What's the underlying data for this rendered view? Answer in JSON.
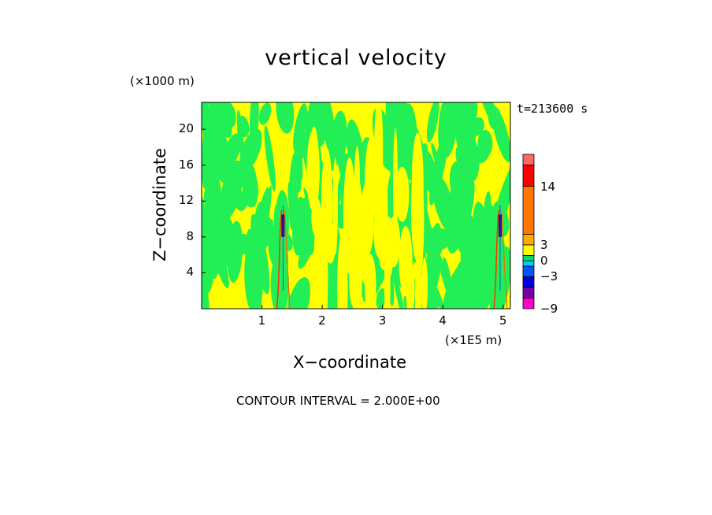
{
  "chart_data": {
    "type": "heatmap",
    "title": "vertical velocity",
    "xlabel": "X−coordinate",
    "ylabel": "Z−coordinate",
    "x_unit": "(×1E5 m)",
    "y_unit": "(×1000 m)",
    "time_label": "t=213600 s",
    "footer": "CONTOUR INTERVAL = 2.000E+00",
    "xlim": [
      0,
      5.12
    ],
    "ylim": [
      0,
      23
    ],
    "x_ticks": [
      "1",
      "2",
      "3",
      "4",
      "5"
    ],
    "y_ticks": [
      "4",
      "8",
      "12",
      "16",
      "20"
    ],
    "colorbar": {
      "tick_labels": [
        "14",
        "3",
        "0",
        "−3",
        "−9"
      ],
      "levels": [
        -9,
        -7,
        -5,
        -3,
        -1,
        0,
        1,
        3,
        5,
        14,
        18,
        20
      ],
      "colors": [
        "#ff00cc",
        "#7700aa",
        "#0000dd",
        "#0055ff",
        "#00ccff",
        "#00dd66",
        "#ffff00",
        "#ffaa00",
        "#ff7700",
        "#ff0000",
        "#ff6666",
        "#ffaaaa"
      ]
    },
    "dominant_colors": {
      "positive_small": "#ffff00",
      "negative_small": "#22ee55"
    }
  }
}
